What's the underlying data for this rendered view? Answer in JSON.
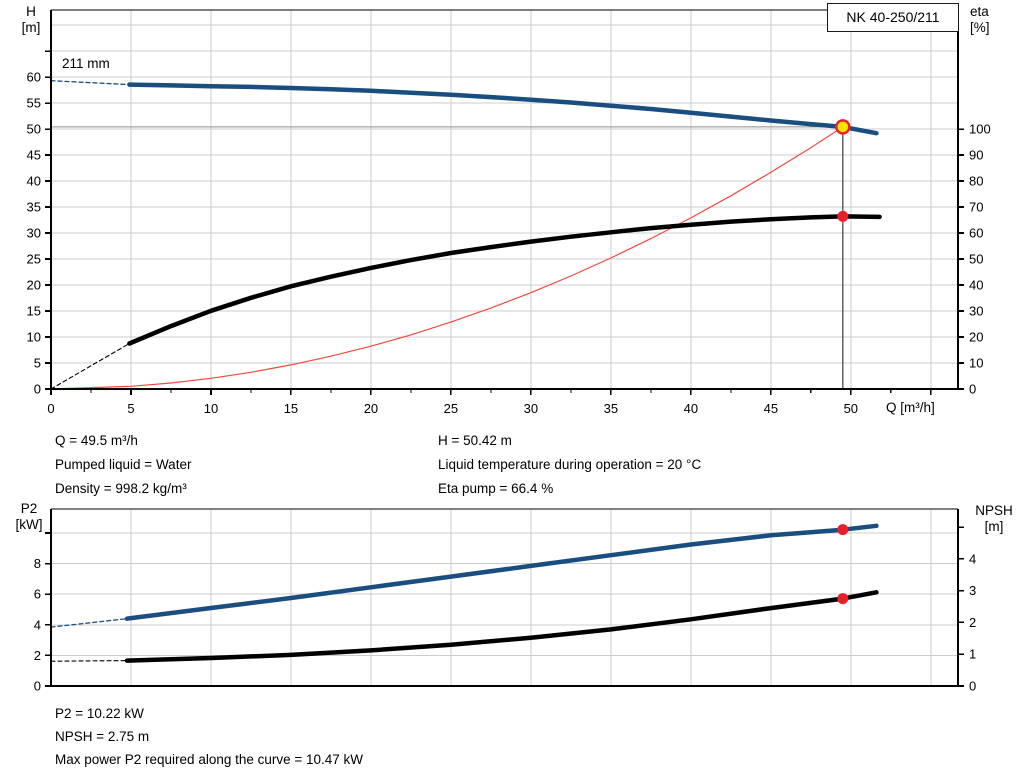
{
  "header": {
    "pump_model": "NK 40-250/211"
  },
  "colors": {
    "curve_blue": "#1a4e80",
    "curve_black": "#000000",
    "system_red": "#f0483e",
    "marker_red": "#e8202a",
    "duty_yellow": "#ffe100",
    "grid": "#cccccc",
    "ref_h": "#8c8c8c",
    "ref_v": "#3c3c3c",
    "frame": "#000000"
  },
  "top_chart_text": {
    "y_left_1": "H",
    "y_left_2": "[m]",
    "y_right_1": "eta",
    "y_right_2": "[%]",
    "x_label": "Q [m³/h]",
    "title_box": "NK 40-250/211",
    "curve_label": "211 mm"
  },
  "bottom_chart_text": {
    "y_left_1": "P2",
    "y_left_2": "[kW]",
    "y_right_1": "NPSH",
    "y_right_2": "[m]"
  },
  "annotations": {
    "operating": {
      "col1": [
        "Q = 49.5 m³/h",
        "Pumped liquid = Water",
        "Density = 998.2 kg/m³"
      ],
      "col2": [
        "H = 50.42 m",
        "Liquid temperature during operation = 20 °C",
        "Eta pump = 66.4 %"
      ]
    },
    "results": [
      "P2 = 10.22 kW",
      "NPSH = 2.75 m",
      "Max power P2 required along the curve = 10.47 kW"
    ]
  },
  "chart_data": [
    {
      "type": "line",
      "title": "NK 40-250/211",
      "x_axis": {
        "label": "Q [m³/h]",
        "min": 0,
        "max": 56.7,
        "minor_step": 2.5,
        "major_step": 5,
        "tick_labels": [
          "0",
          "5",
          "10",
          "15",
          "20",
          "25",
          "30",
          "35",
          "40",
          "45",
          "50"
        ]
      },
      "y_left": {
        "label": "H [m]",
        "min": 0,
        "max": 72.9,
        "ticks": [
          0,
          5,
          10,
          15,
          20,
          25,
          30,
          35,
          40,
          45,
          50,
          55,
          60,
          65
        ],
        "tick_labels": [
          "0",
          "5",
          "10",
          "15",
          "20",
          "25",
          "30",
          "35",
          "40",
          "45",
          "50",
          "55",
          "60"
        ]
      },
      "y_right": {
        "label": "eta [%]",
        "min": 0,
        "max": 145.8,
        "ticks": [
          0,
          10,
          20,
          30,
          40,
          50,
          60,
          70,
          80,
          90,
          100
        ],
        "tick_labels": [
          "0",
          "10",
          "20",
          "30",
          "40",
          "50",
          "60",
          "70",
          "80",
          "90",
          "100"
        ]
      },
      "grid": {
        "x_start": 5,
        "x_step": 5,
        "x_end": 55,
        "y_start": 5,
        "y_step": 5,
        "y_end": 70
      },
      "series": [
        {
          "name": "head-curve-dashed",
          "axis": "left",
          "color": "#1a4e80",
          "width": 1.3,
          "dash": "4 3",
          "points": [
            [
              0,
              59.3
            ],
            [
              4.9,
              58.55
            ]
          ]
        },
        {
          "name": "system-curve",
          "axis": "left",
          "color": "#f0483e",
          "width": 1.2,
          "points": [
            [
              0,
              0
            ],
            [
              5,
              0.51
            ],
            [
              7.5,
              1.16
            ],
            [
              10,
              2.06
            ],
            [
              12.5,
              3.21
            ],
            [
              15,
              4.63
            ],
            [
              17.5,
              6.3
            ],
            [
              20,
              8.23
            ],
            [
              22.5,
              10.41
            ],
            [
              25,
              12.86
            ],
            [
              27.5,
              15.56
            ],
            [
              30,
              18.52
            ],
            [
              32.5,
              21.73
            ],
            [
              35,
              25.2
            ],
            [
              37.5,
              28.93
            ],
            [
              40,
              32.92
            ],
            [
              42.5,
              37.16
            ],
            [
              45,
              41.66
            ],
            [
              47.5,
              46.42
            ],
            [
              49.5,
              50.42
            ]
          ]
        },
        {
          "name": "efficiency-curve-dashed",
          "axis": "right",
          "color": "#000000",
          "width": 1.1,
          "dash": "4 3",
          "points": [
            [
              0,
              0
            ],
            [
              4.9,
              17.5
            ]
          ]
        },
        {
          "name": "head-curve",
          "axis": "left",
          "color": "#1a4e80",
          "width": 4.5,
          "points": [
            [
              4.9,
              58.55
            ],
            [
              7.5,
              58.4
            ],
            [
              10,
              58.25
            ],
            [
              12.5,
              58.1
            ],
            [
              15,
              57.9
            ],
            [
              17.5,
              57.65
            ],
            [
              20,
              57.35
            ],
            [
              22.5,
              57.0
            ],
            [
              25,
              56.6
            ],
            [
              27.5,
              56.15
            ],
            [
              30,
              55.65
            ],
            [
              32.5,
              55.1
            ],
            [
              35,
              54.5
            ],
            [
              37.5,
              53.85
            ],
            [
              40,
              53.15
            ],
            [
              42.5,
              52.4
            ],
            [
              45,
              51.65
            ],
            [
              47.5,
              50.95
            ],
            [
              49.5,
              50.42
            ],
            [
              51.6,
              49.2
            ]
          ]
        },
        {
          "name": "efficiency-curve",
          "axis": "right",
          "color": "#000000",
          "width": 4.5,
          "points": [
            [
              4.9,
              17.5
            ],
            [
              7.5,
              24.2
            ],
            [
              10,
              30.1
            ],
            [
              12.5,
              35.1
            ],
            [
              15,
              39.5
            ],
            [
              17.5,
              43.2
            ],
            [
              20,
              46.6
            ],
            [
              22.5,
              49.6
            ],
            [
              25,
              52.3
            ],
            [
              27.5,
              54.6
            ],
            [
              30,
              56.7
            ],
            [
              32.5,
              58.6
            ],
            [
              35,
              60.3
            ],
            [
              37.5,
              61.9
            ],
            [
              40,
              63.2
            ],
            [
              42.5,
              64.4
            ],
            [
              45,
              65.3
            ],
            [
              47.5,
              66.0
            ],
            [
              49.5,
              66.4
            ],
            [
              51.8,
              66.2
            ]
          ]
        }
      ],
      "ref_lines": [
        {
          "name": "duty-horizontal-line",
          "type": "h",
          "axis": "left",
          "value": 50.42,
          "from": 0,
          "to": 49.5,
          "color": "#8c8c8c",
          "width": 1
        },
        {
          "name": "duty-vertical-line",
          "type": "v",
          "axis": "left",
          "value": 49.5,
          "from": 0,
          "to": 50.42,
          "color": "#3c3c3c",
          "width": 1.2
        }
      ],
      "markers": [
        {
          "name": "duty-point",
          "axis": "left",
          "q": 49.5,
          "v": 50.42,
          "r": 6.5,
          "fill": "#ffe100",
          "stroke": "#e8202a",
          "stroke_width": 2.4
        },
        {
          "name": "efficiency-point",
          "axis": "right",
          "q": 49.5,
          "v": 66.4,
          "r": 5.5,
          "fill": "#e8202a"
        }
      ],
      "duty_values": {
        "Q": "49.5 m³/h",
        "H": "50.42 m",
        "eta": "66.4 %"
      }
    },
    {
      "type": "line",
      "title": "P2 / NPSH",
      "x_axis": {
        "label": "",
        "min": 0,
        "max": 56.7,
        "minor_step": 0,
        "major_step": 5,
        "tick_labels": []
      },
      "y_left": {
        "label": "P2 [kW]",
        "min": 0,
        "max": 11.57,
        "ticks": [
          0,
          2,
          4,
          6,
          8,
          10
        ],
        "tick_labels": [
          "0",
          "2",
          "4",
          "6",
          "8"
        ]
      },
      "y_right": {
        "label": "NPSH [m]",
        "min": 0,
        "max": 5.57,
        "ticks": [
          0,
          1,
          2,
          3,
          4,
          5
        ],
        "tick_labels": [
          "0",
          "1",
          "2",
          "3",
          "4"
        ]
      },
      "grid": {
        "x_start": 5,
        "x_step": 5,
        "x_end": 55,
        "y_start": 2,
        "y_step": 2,
        "y_end": 10
      },
      "series": [
        {
          "name": "p2-curve-dashed",
          "axis": "left",
          "color": "#1a4e80",
          "width": 1.3,
          "dash": "4 3",
          "points": [
            [
              0,
              3.85
            ],
            [
              4.75,
              4.4
            ]
          ]
        },
        {
          "name": "npsh-curve-dashed",
          "axis": "right",
          "color": "#000000",
          "width": 1.1,
          "dash": "4 3",
          "points": [
            [
              0,
              0.78
            ],
            [
              4.75,
              0.8
            ]
          ]
        },
        {
          "name": "p2-curve",
          "axis": "left",
          "color": "#1a4e80",
          "width": 4.5,
          "points": [
            [
              4.75,
              4.4
            ],
            [
              10,
              5.1
            ],
            [
              15,
              5.75
            ],
            [
              20,
              6.45
            ],
            [
              25,
              7.15
            ],
            [
              30,
              7.85
            ],
            [
              35,
              8.55
            ],
            [
              40,
              9.25
            ],
            [
              45,
              9.85
            ],
            [
              47.5,
              10.05
            ],
            [
              49.5,
              10.22
            ],
            [
              51.6,
              10.47
            ]
          ]
        },
        {
          "name": "npsh-curve",
          "axis": "right",
          "color": "#000000",
          "width": 4.5,
          "points": [
            [
              4.75,
              0.8
            ],
            [
              10,
              0.88
            ],
            [
              15,
              0.98
            ],
            [
              20,
              1.12
            ],
            [
              25,
              1.3
            ],
            [
              30,
              1.52
            ],
            [
              35,
              1.78
            ],
            [
              40,
              2.1
            ],
            [
              45,
              2.45
            ],
            [
              49.5,
              2.75
            ],
            [
              51.6,
              2.95
            ]
          ]
        }
      ],
      "ref_lines": [],
      "markers": [
        {
          "name": "p2-point",
          "axis": "left",
          "q": 49.5,
          "v": 10.22,
          "r": 5.5,
          "fill": "#e8202a"
        },
        {
          "name": "npsh-point",
          "axis": "right",
          "q": 49.5,
          "v": 2.75,
          "r": 5.5,
          "fill": "#e8202a"
        }
      ],
      "duty_values": {
        "P2": "10.22 kW",
        "NPSH": "2.75 m",
        "P2_max": "10.47 kW"
      }
    }
  ]
}
